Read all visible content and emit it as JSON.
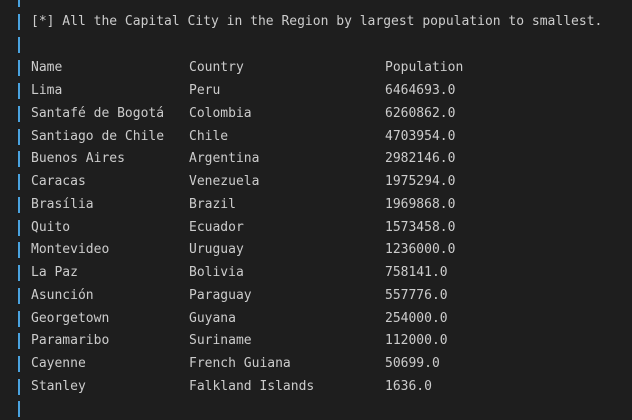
{
  "heading": "[*] All the Capital City in the Region by largest population to smallest.",
  "table": {
    "headers": [
      "Name",
      "Country",
      "Population"
    ],
    "rows": [
      [
        "Lima",
        "Peru",
        "6464693.0"
      ],
      [
        "Santafé de Bogotá",
        "Colombia",
        "6260862.0"
      ],
      [
        "Santiago de Chile",
        "Chile",
        "4703954.0"
      ],
      [
        "Buenos Aires",
        "Argentina",
        "2982146.0"
      ],
      [
        "Caracas",
        "Venezuela",
        "1975294.0"
      ],
      [
        "Brasília",
        "Brazil",
        "1969868.0"
      ],
      [
        "Quito",
        "Ecuador",
        "1573458.0"
      ],
      [
        "Montevideo",
        "Uruguay",
        "1236000.0"
      ],
      [
        "La Paz",
        "Bolivia",
        "758141.0"
      ],
      [
        "Asunción",
        "Paraguay",
        "557776.0"
      ],
      [
        "Georgetown",
        "Guyana",
        "254000.0"
      ],
      [
        "Paramaribo",
        "Suriname",
        "112000.0"
      ],
      [
        "Cayenne",
        "French Guiana",
        "50699.0"
      ],
      [
        "Stanley",
        "Falkland Islands",
        "1636.0"
      ]
    ]
  },
  "colors": {
    "background": "#1e1e1e",
    "text": "#cccccc",
    "gutter_bar": "#4aa3df"
  }
}
